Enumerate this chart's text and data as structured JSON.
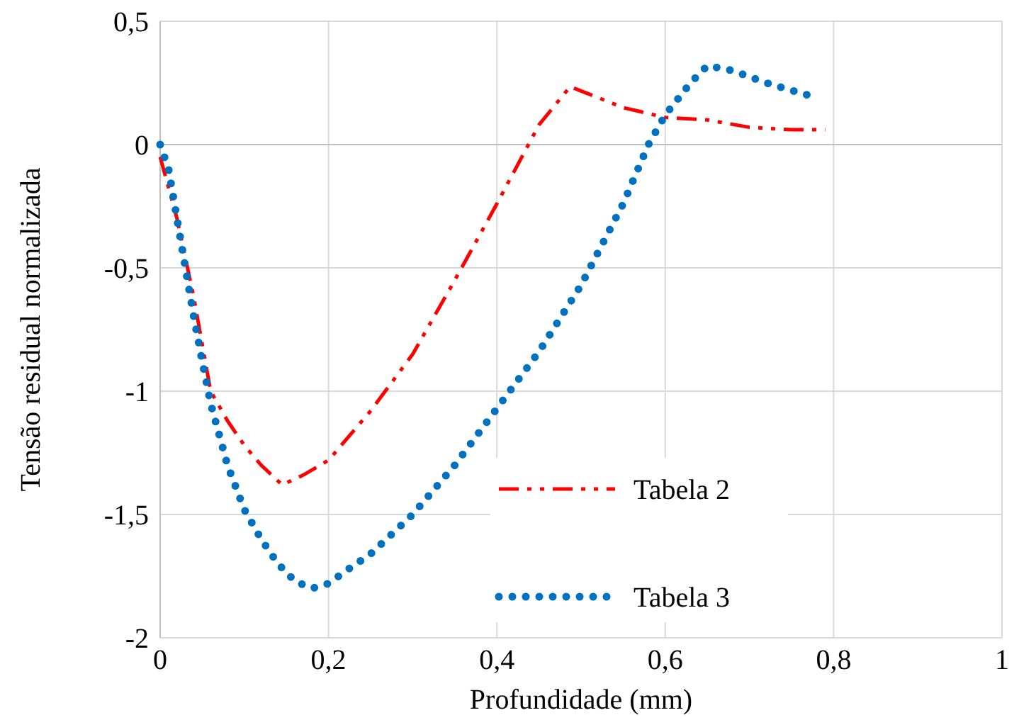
{
  "chart_data": {
    "type": "line",
    "xlabel": "Profundidade (mm)",
    "ylabel": "Tensão residual normalizada",
    "xlim": [
      0,
      1
    ],
    "xticks": [
      0,
      {
        "value": 0.2,
        "label": "0,2"
      },
      {
        "value": 0.4,
        "label": "0,4"
      },
      {
        "value": 0.6,
        "label": "0,6"
      },
      {
        "value": 0.8,
        "label": "0,8"
      },
      1
    ],
    "ylim": [
      -2,
      0.5
    ],
    "yticks": [
      -2,
      {
        "value": -1.5,
        "label": "-1,5"
      },
      -1,
      {
        "value": -0.5,
        "label": "-0,5"
      },
      0,
      {
        "value": 0.5,
        "label": "0,5"
      }
    ],
    "grid": true,
    "legend": "bottom right",
    "marker": "none",
    "series": [
      {
        "name": "Tabela 2",
        "color": "#ff0000",
        "line_style": "dashed",
        "x": [
          0,
          0.02,
          0.04,
          0.06,
          0.08,
          0.1,
          0.12,
          0.145,
          0.17,
          0.2,
          0.25,
          0.3,
          0.35,
          0.4,
          0.45,
          0.487,
          0.55,
          0.6,
          0.65,
          0.7,
          0.75,
          0.79
        ],
        "values": [
          -0.05,
          -0.3,
          -0.62,
          -1.0,
          -1.12,
          -1.22,
          -1.3,
          -1.38,
          -1.34,
          -1.28,
          -1.08,
          -0.85,
          -0.55,
          -0.24,
          0.08,
          0.235,
          0.15,
          0.11,
          0.1,
          0.07,
          0.06,
          0.06
        ]
      },
      {
        "name": "Tabela 3",
        "color": "#0070c0",
        "line_style": "dotted",
        "x": [
          0,
          0.01,
          0.02,
          0.03,
          0.04,
          0.05,
          0.06,
          0.08,
          0.1,
          0.12,
          0.14,
          0.16,
          0.18,
          0.2,
          0.22,
          0.25,
          0.3,
          0.35,
          0.4,
          0.45,
          0.5,
          0.55,
          0.58,
          0.6,
          0.63,
          0.65,
          0.68,
          0.72,
          0.75,
          0.77
        ],
        "values": [
          0,
          -0.1,
          -0.3,
          -0.5,
          -0.7,
          -0.88,
          -1.05,
          -1.3,
          -1.48,
          -1.6,
          -1.7,
          -1.77,
          -1.8,
          -1.78,
          -1.73,
          -1.66,
          -1.5,
          -1.3,
          -1.07,
          -0.84,
          -0.57,
          -0.24,
          0,
          0.12,
          0.25,
          0.32,
          0.3,
          0.25,
          0.22,
          0.2
        ]
      }
    ]
  }
}
